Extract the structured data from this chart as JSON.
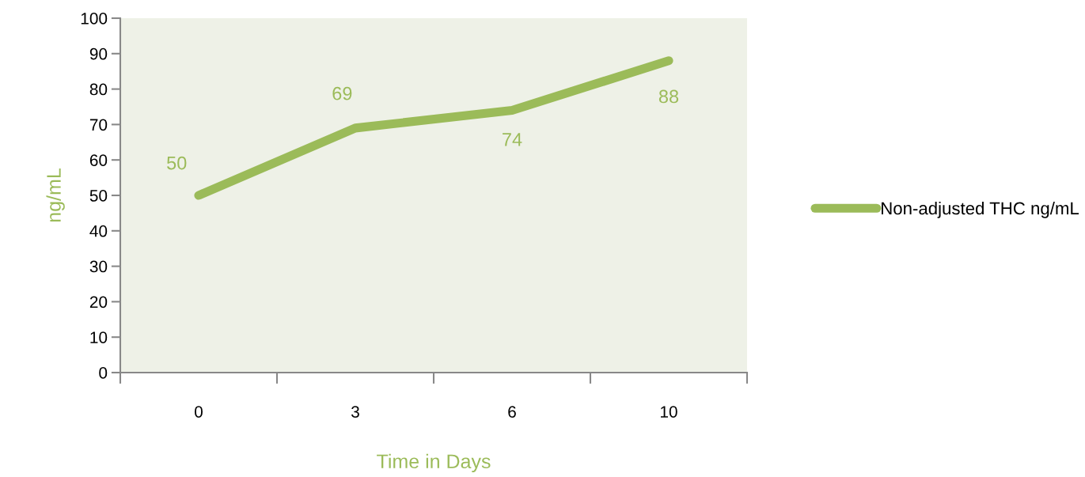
{
  "chart_data": {
    "type": "line",
    "xlabel": "Time in Days",
    "ylabel": "ng/mL",
    "categories": [
      "0",
      "3",
      "6",
      "10"
    ],
    "series": [
      {
        "name": "Non-adjusted THC ng/mL",
        "color": "#9bbb59",
        "values": [
          50,
          69,
          74,
          88
        ]
      }
    ],
    "ylim": [
      0,
      100
    ],
    "yticks": [
      0,
      10,
      20,
      30,
      40,
      50,
      60,
      70,
      80,
      90,
      100
    ],
    "data_labels": true,
    "legend": "right",
    "grid": false,
    "marker": "none",
    "line_style": "solid"
  }
}
